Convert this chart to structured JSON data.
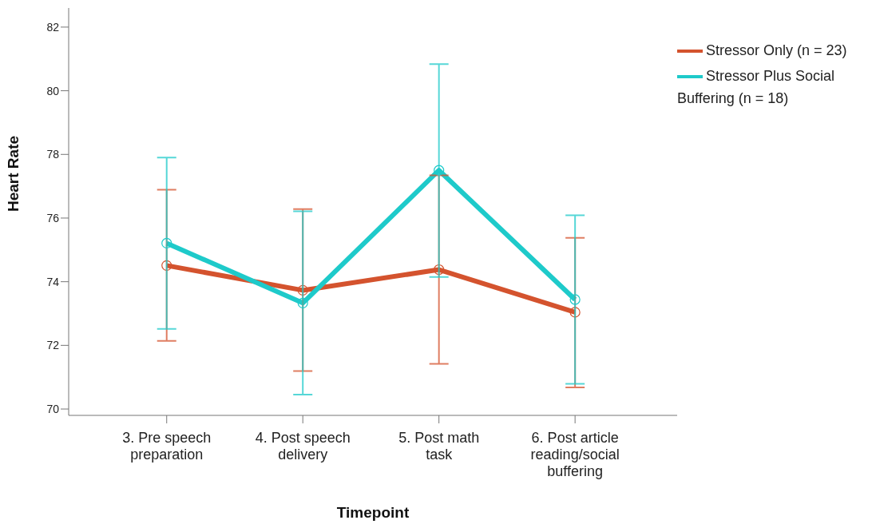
{
  "chart_data": {
    "type": "line",
    "xlabel": "Timepoint",
    "ylabel": "Heart Rate",
    "categories": [
      "3. Pre speech preparation",
      "4. Post speech delivery",
      "5. Post math task",
      "6. Post article reading/social buffering"
    ],
    "series": [
      {
        "name": "Stressor Only (n = 23)",
        "color": "#d4532e",
        "values": [
          74.51,
          73.73,
          74.38,
          73.04
        ],
        "errors": [
          [
            72.14,
            76.89
          ],
          [
            71.19,
            76.28
          ],
          [
            71.42,
            77.34
          ],
          [
            70.68,
            75.38
          ]
        ]
      },
      {
        "name": "Stressor Plus Social Buffering (n = 18)",
        "color": "#1ecaca",
        "values": [
          75.21,
          73.33,
          77.5,
          73.44
        ],
        "errors": [
          [
            72.52,
            77.9
          ],
          [
            70.45,
            76.21
          ],
          [
            74.15,
            80.84
          ],
          [
            70.79,
            76.09
          ]
        ]
      }
    ],
    "ylim": [
      69.8,
      82.6
    ],
    "yticks": [
      70,
      72,
      74,
      76,
      78,
      80,
      82
    ],
    "grid": false,
    "legend": "top right",
    "marker": "circle",
    "line_style": "solid"
  }
}
